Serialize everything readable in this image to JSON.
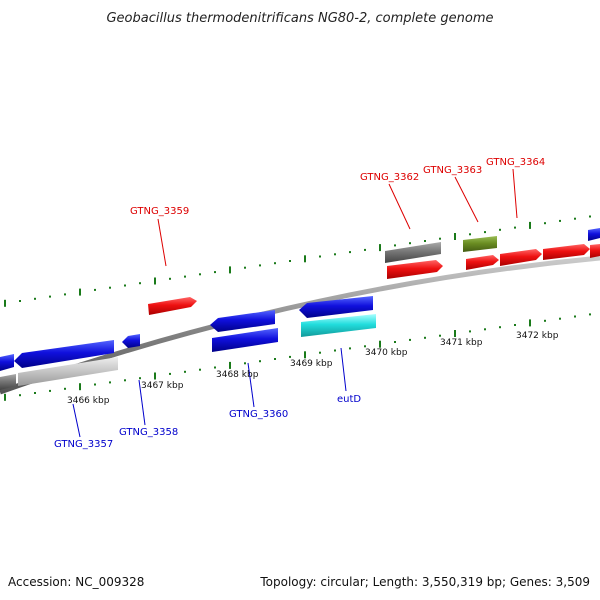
{
  "title": "Geobacillus thermodenitrificans NG80-2, complete genome",
  "footer": {
    "accession": "Accession: NC_009328",
    "topology": "Topology: circular; Length: 3,550,319 bp; Genes: 3,509"
  },
  "kbp_labels": [
    "3466 kbp",
    "3467 kbp",
    "3468 kbp",
    "3469 kbp",
    "3470 kbp",
    "3471 kbp",
    "3472 kbp"
  ],
  "gene_labels_top": [
    "GTNG_3359",
    "GTNG_3362",
    "GTNG_3363",
    "GTNG_3364"
  ],
  "gene_labels_bottom": [
    "GTNG_3357",
    "GTNG_3358",
    "GTNG_3360",
    "eutD"
  ],
  "colors": {
    "forward_gene": "#ee1111",
    "reverse_gene": "#1010dd",
    "rna_gene": "#22dddd",
    "pseudo_gray": "#777777",
    "light_gray": "#c8c8c8",
    "olive": "#6b8e23",
    "tick": "#1a7a1a",
    "backbone": "#888888",
    "label_red": "#dd0000",
    "label_blue": "#0000cc"
  }
}
